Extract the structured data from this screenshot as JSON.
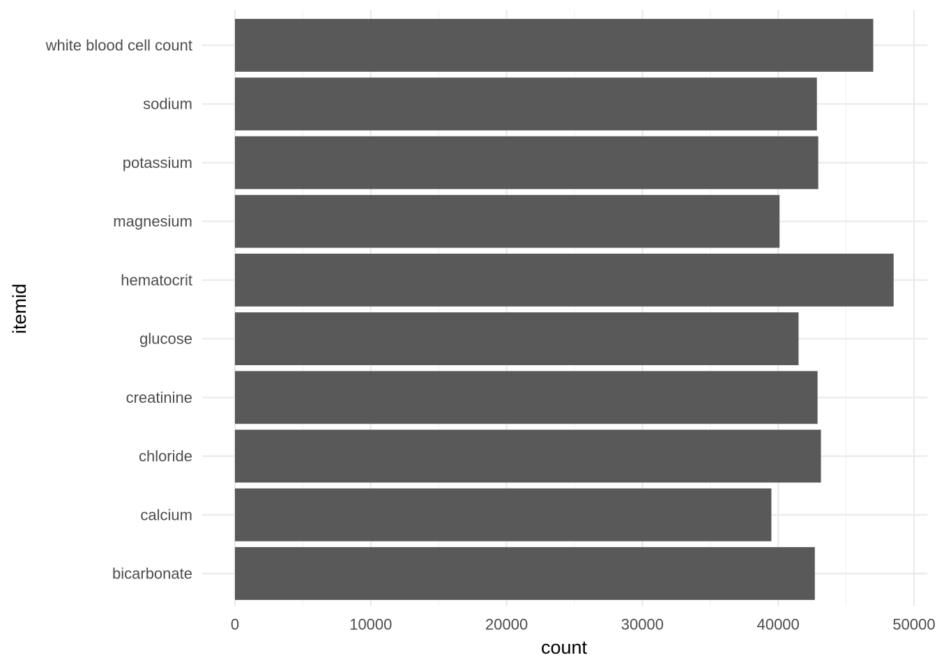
{
  "chart_data": {
    "type": "bar",
    "orientation": "horizontal",
    "xlabel": "count",
    "ylabel": "itemid",
    "xlim": [
      0,
      50000
    ],
    "x_ticks": [
      0,
      10000,
      20000,
      30000,
      40000,
      50000
    ],
    "grid": true,
    "categories": [
      "white blood cell count",
      "sodium",
      "potassium",
      "magnesium",
      "hematocrit",
      "glucose",
      "creatinine",
      "chloride",
      "calcium",
      "bicarbonate"
    ],
    "values": [
      47000,
      42850,
      42950,
      40100,
      48500,
      41500,
      42900,
      43150,
      39500,
      42700
    ],
    "colors": {
      "bar": "#595959",
      "grid_major": "#ebebeb",
      "grid_minor": "#f2f2f2",
      "tick_text": "#4d4d4d",
      "title_text": "#000000"
    }
  }
}
